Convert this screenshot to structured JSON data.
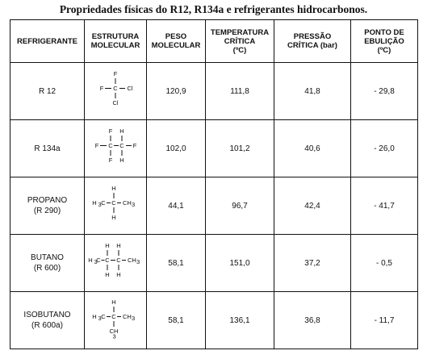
{
  "title": "Propriedades físicas do R12, R134a e refrigerantes hidrocarbonos.",
  "headers": {
    "refrigerante": [
      "REFRIGERANTE"
    ],
    "estrutura": [
      "ESTRUTURA",
      "MOLECULAR"
    ],
    "peso": [
      "PESO",
      "MOLECULAR"
    ],
    "temperatura": [
      "TEMPERATURA",
      "CRÍTICA",
      "(ºC)"
    ],
    "pressao": [
      "PRESSÃO",
      "CRÍTICA (bar)"
    ],
    "ebulicao": [
      "PONTO DE",
      "EBULIÇÃO",
      "(ºC)"
    ]
  },
  "rows": [
    {
      "name": [
        "R 12"
      ],
      "structure": {
        "top": "F",
        "mid": [
          "F",
          "C",
          "Cl"
        ],
        "bottom": "Cl"
      },
      "peso": "120,9",
      "temperatura": "111,8",
      "pressao": "41,8",
      "ebulicao": "- 29,8"
    },
    {
      "name": [
        "R 134a"
      ],
      "structure": {
        "top": [
          "F",
          "H"
        ],
        "mid": [
          "F",
          "C",
          "C",
          "F"
        ],
        "bottom": [
          "F",
          "H"
        ]
      },
      "peso": "102,0",
      "temperatura": "101,2",
      "pressao": "40,6",
      "ebulicao": "- 26,0"
    },
    {
      "name": [
        "PROPANO",
        "(R 290)"
      ],
      "structure": {
        "top": "H",
        "mid": [
          "H",
          "C",
          "C",
          "CH"
        ],
        "sub_left": "3",
        "sub_right": "3",
        "bottom": "H"
      },
      "peso": "44,1",
      "temperatura": "96,7",
      "pressao": "42,4",
      "ebulicao": "- 41,7"
    },
    {
      "name": [
        "BUTANO",
        "(R 600)"
      ],
      "structure": {
        "top": [
          "H",
          "H"
        ],
        "mid": [
          "H",
          "C",
          "C",
          "C",
          "CH"
        ],
        "sub_left": "3",
        "sub_right": "3",
        "bottom": [
          "H",
          "H"
        ]
      },
      "peso": "58,1",
      "temperatura": "151,0",
      "pressao": "37,2",
      "ebulicao": "- 0,5"
    },
    {
      "name": [
        "ISOBUTANO",
        "(R 600a)"
      ],
      "structure": {
        "top": "H",
        "mid": [
          "H",
          "C",
          "C",
          "CH"
        ],
        "sub_left": "3",
        "sub_right": "3",
        "bottom": "CH",
        "sub_bottom": "3"
      },
      "peso": "58,1",
      "temperatura": "136,1",
      "pressao": "36,8",
      "ebulicao": "- 11,7"
    }
  ]
}
